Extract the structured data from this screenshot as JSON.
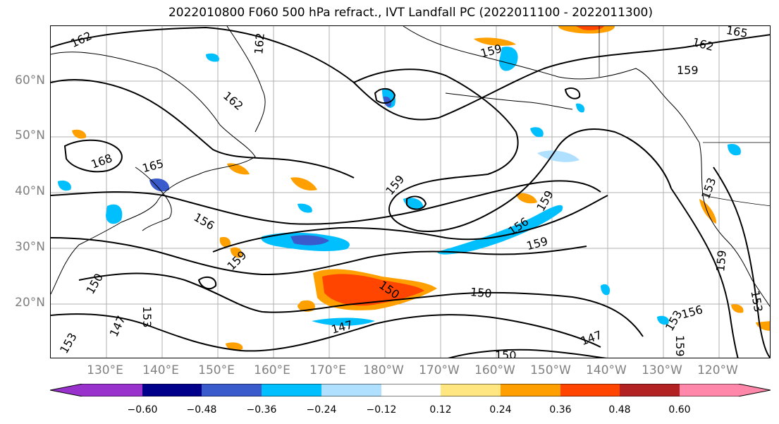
{
  "title": "2022010800 F060 500 hPa refract., IVT Landfall PC (2022011100 - 2022011300)",
  "lat_labels": [
    "60°N",
    "50°N",
    "40°N",
    "30°N",
    "20°N"
  ],
  "lon_labels": [
    "130°E",
    "140°E",
    "150°E",
    "160°E",
    "170°E",
    "180°W",
    "170°W",
    "160°W",
    "150°W",
    "140°W",
    "130°W",
    "120°W"
  ],
  "colorbar": {
    "ticks": [
      "−0.60",
      "−0.48",
      "−0.36",
      "−0.24",
      "−0.12",
      "0.12",
      "0.24",
      "0.36",
      "0.48",
      "0.60"
    ],
    "colors": [
      "#9932cc",
      "#00008b",
      "#3a5bcc",
      "#00bfff",
      "#b0e0ff",
      "#ffffff",
      "#ffe680",
      "#ffa000",
      "#ff4500",
      "#b22222",
      "#ff88aa"
    ]
  },
  "contour_labels": [
    "162",
    "162",
    "162",
    "165",
    "159",
    "159",
    "162",
    "168",
    "165",
    "159",
    "159",
    "153",
    "156",
    "159",
    "156",
    "159",
    "150",
    "150",
    "150",
    "159",
    "153",
    "147",
    "147",
    "153",
    "156",
    "153",
    "147",
    "150",
    "159",
    "153"
  ]
}
